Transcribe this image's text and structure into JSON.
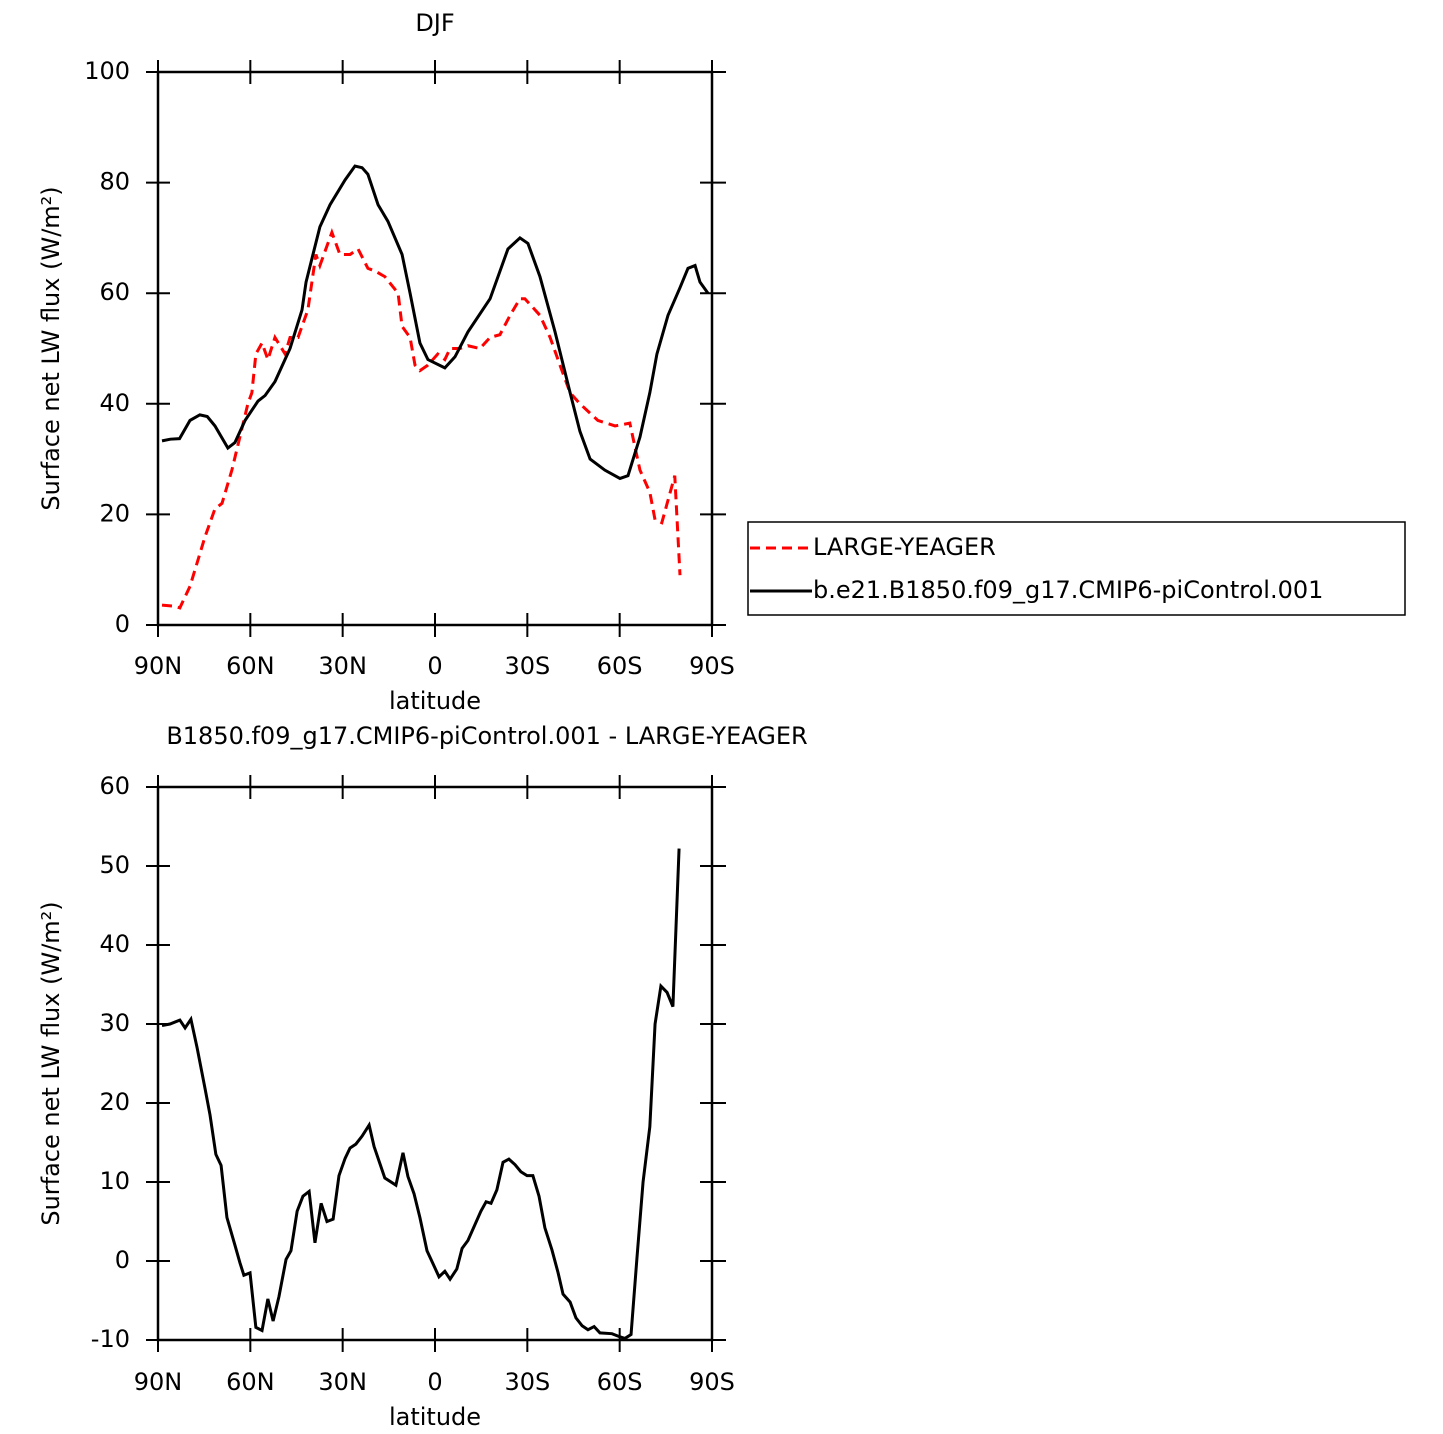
{
  "chart_data": [
    {
      "type": "line",
      "title": "DJF",
      "xlabel": "latitude",
      "ylabel": "Surface net LW flux (W/m²)",
      "xlim": [
        90,
        -90
      ],
      "xticks": [
        {
          "value": 90,
          "label": "90N"
        },
        {
          "value": 60,
          "label": "60N"
        },
        {
          "value": 30,
          "label": "30N"
        },
        0,
        {
          "value": -30,
          "label": "30S"
        },
        {
          "value": -60,
          "label": "60S"
        },
        {
          "value": -90,
          "label": "90S"
        }
      ],
      "ylim": [
        0,
        100
      ],
      "yticks": [
        0,
        20,
        40,
        60,
        80,
        100
      ],
      "legend": "outside right",
      "series": [
        {
          "name": "LARGE-YEAGER",
          "color": "#ff0000",
          "linestyle": "dashed",
          "x": [
            88.7,
            84.5,
            82.9,
            79.6,
            74.7,
            71.5,
            69.2,
            66,
            63.4,
            60.8,
            59.5,
            58.2,
            56.2,
            54.3,
            52,
            48.7,
            47.1,
            44.5,
            41.3,
            38.7,
            37.4,
            33.5,
            30.9,
            27.6,
            25,
            21.8,
            19.5,
            16.3,
            12,
            10.7,
            8.1,
            6.5,
            4.9,
            2.3,
            -0.9,
            -3.2,
            -4.9,
            -8.1,
            -10.7,
            -14.6,
            -17.9,
            -21.1,
            -24.4,
            -27.6,
            -29.2,
            -34.1,
            -37.4,
            -40.6,
            -43.9,
            -47.1,
            -52.9,
            -58.5,
            -63.3,
            -66.6,
            -69.8,
            -71.5,
            -73.7,
            -77.9,
            -79.6
          ],
          "values": [
            3.6,
            3.4,
            3.1,
            7,
            16,
            21,
            22,
            28,
            34,
            40,
            42,
            49,
            51,
            48,
            52,
            49,
            52,
            52,
            57,
            67,
            65,
            71,
            67,
            67,
            68,
            64.5,
            64,
            63,
            60,
            54,
            52,
            47,
            46,
            47,
            49,
            48,
            50,
            50,
            50.5,
            50,
            52,
            52.5,
            56,
            59,
            59,
            56,
            52,
            47,
            42,
            40,
            37,
            36,
            36.5,
            28,
            24,
            19,
            18.5,
            27,
            9
          ]
        },
        {
          "name": "b.e21.B1850.f09_g17.CMIP6-piControl.001",
          "color": "#000000",
          "linestyle": "solid",
          "x": [
            88.7,
            86,
            83,
            79.6,
            76.4,
            74,
            71.5,
            67.3,
            65,
            61.7,
            57.5,
            55.2,
            52,
            47.1,
            43.2,
            41.9,
            37.4,
            34.1,
            29.2,
            26,
            23.7,
            21.8,
            18.5,
            15.3,
            10.7,
            8.1,
            4.9,
            2.3,
            -3.2,
            -6.5,
            -10.7,
            -17.9,
            -23.7,
            -27.6,
            -30.2,
            -34.1,
            -39,
            -43.9,
            -47.1,
            -50.4,
            -55.2,
            -60.1,
            -62.7,
            -66.6,
            -69.8,
            -72.1,
            -75.7,
            -79.6,
            -82.2,
            -84.5,
            -86.1,
            -88.7
          ],
          "values": [
            33.3,
            33.6,
            33.7,
            37,
            38,
            37.7,
            36,
            32,
            33,
            37,
            40.5,
            41.5,
            44,
            50,
            57,
            62,
            72,
            76,
            80.5,
            83,
            82.7,
            81.5,
            76,
            73,
            67,
            60,
            51,
            48,
            46.5,
            48.5,
            53,
            59,
            68,
            70,
            69,
            63,
            53,
            42,
            35,
            30,
            28,
            26.5,
            27,
            34,
            42,
            49,
            56,
            61,
            64.5,
            65,
            62,
            60
          ]
        }
      ]
    },
    {
      "type": "line",
      "title": "B1850.f09_g17.CMIP6-piControl.001 - LARGE-YEAGER",
      "xlabel": "latitude",
      "ylabel": "Surface net LW flux (W/m²)",
      "xlim": [
        90,
        -90
      ],
      "xticks": [
        {
          "value": 90,
          "label": "90N"
        },
        {
          "value": 60,
          "label": "60N"
        },
        {
          "value": 30,
          "label": "30N"
        },
        0,
        {
          "value": -30,
          "label": "30S"
        },
        {
          "value": -60,
          "label": "60S"
        },
        {
          "value": -90,
          "label": "90S"
        }
      ],
      "ylim": [
        -10,
        60
      ],
      "yticks": [
        -10,
        0,
        10,
        20,
        30,
        40,
        50,
        60
      ],
      "series": [
        {
          "color": "#000000",
          "linestyle": "solid",
          "x": [
            88.7,
            86.1,
            82.9,
            81.2,
            79.3,
            77.3,
            74.7,
            73.1,
            71.2,
            69.5,
            67.6,
            65,
            63.4,
            62.1,
            60.1,
            58.2,
            56.2,
            54.3,
            52.6,
            50.7,
            48.4,
            46.8,
            44.8,
            42.9,
            40.9,
            39,
            37,
            35.1,
            33.1,
            31.2,
            29.2,
            27.6,
            25.7,
            23.7,
            21.4,
            19.8,
            16.3,
            12.7,
            10.4,
            8.8,
            6.8,
            4.9,
            2.6,
            0.7,
            -1.3,
            -3.2,
            -4.9,
            -7.1,
            -8.8,
            -10.7,
            -14.9,
            -16.6,
            -18.2,
            -20.1,
            -22.1,
            -24,
            -26,
            -27.9,
            -29.9,
            -31.8,
            -33.8,
            -35.7,
            -38,
            -40,
            -41.6,
            -43.9,
            -45.8,
            -47.8,
            -49.7,
            -51.7,
            -53.6,
            -57.5,
            -60.1,
            -61.7,
            -63.7,
            -65.6,
            -67.6,
            -69.8,
            -71.5,
            -73.4,
            -75.4,
            -77.3,
            -79.3
          ],
          "values": [
            29.8,
            30,
            30.5,
            29.5,
            30.6,
            27,
            21.8,
            18.5,
            13.5,
            12.1,
            5.5,
            2,
            -0.2,
            -1.8,
            -1.5,
            -8.4,
            -8.8,
            -4.8,
            -7.6,
            -4.5,
            0.2,
            1.3,
            6.3,
            8.2,
            8.8,
            2.3,
            7.3,
            5,
            5.3,
            10.8,
            13,
            14.3,
            14.8,
            15.8,
            17.2,
            14.5,
            10.5,
            9.6,
            13.7,
            10.7,
            8.5,
            5.5,
            1.3,
            -0.3,
            -2,
            -1.3,
            -2.3,
            -1,
            1.6,
            2.6,
            6.3,
            7.5,
            7.3,
            9,
            12.5,
            12.9,
            12.2,
            11.3,
            10.8,
            10.8,
            8.2,
            4.2,
            1.4,
            -1.5,
            -4.2,
            -5.2,
            -7.2,
            -8.2,
            -8.7,
            -8.3,
            -9.1,
            -9.2,
            -9.6,
            -9.8,
            -9.3,
            0.3,
            10,
            17,
            30,
            34.8,
            34,
            32.2,
            52.2
          ]
        }
      ]
    }
  ]
}
